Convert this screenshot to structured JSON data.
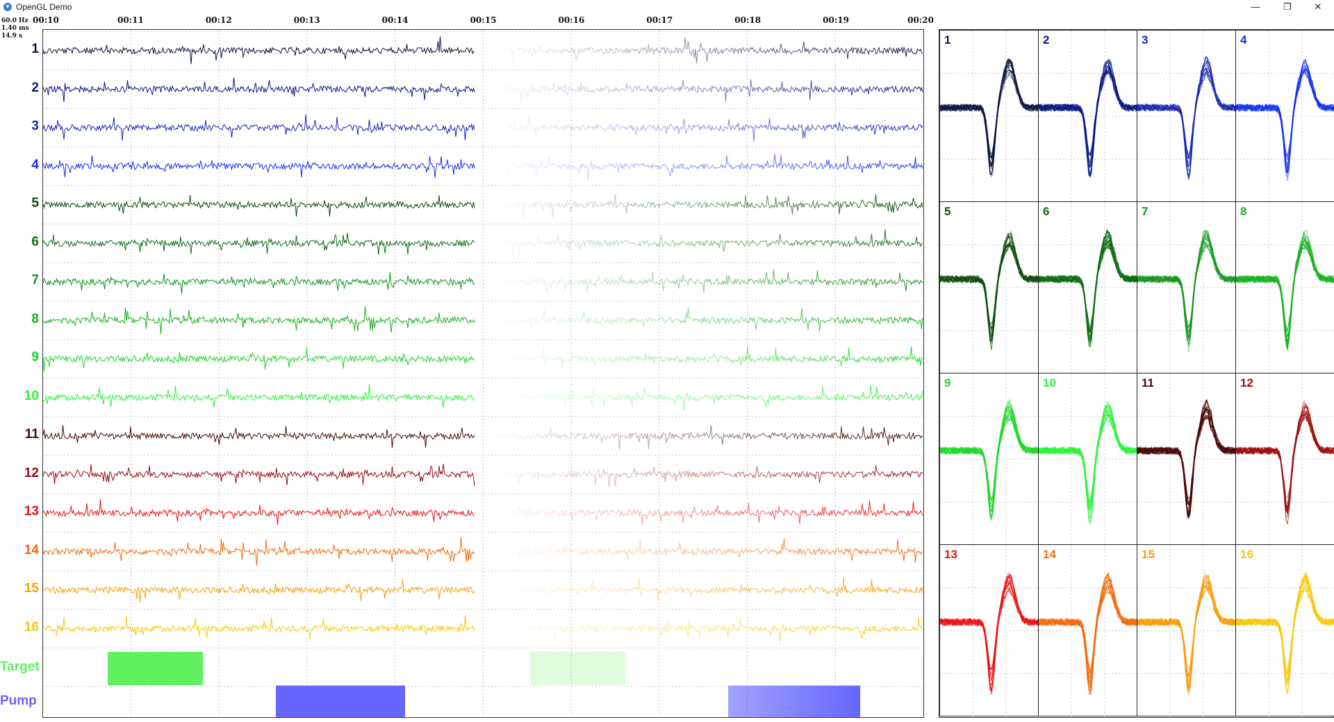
{
  "window": {
    "title": "OpenGL Demo",
    "minimize_label": "—",
    "restore_label": "❐",
    "close_label": "✕"
  },
  "stats": {
    "refresh": "60.0 Hz",
    "frame_time": "1.40 ms",
    "window_length": "14.9 s"
  },
  "time_axis": {
    "ticks": [
      "00:10",
      "00:11",
      "00:12",
      "00:13",
      "00:14",
      "00:15",
      "00:16",
      "00:17",
      "00:18",
      "00:19",
      "00:20"
    ]
  },
  "channels": [
    {
      "label": "1",
      "color": "#0d1440"
    },
    {
      "label": "2",
      "color": "#0a1785"
    },
    {
      "label": "3",
      "color": "#1a28b0"
    },
    {
      "label": "4",
      "color": "#1430ef"
    },
    {
      "label": "5",
      "color": "#0b4a0d"
    },
    {
      "label": "6",
      "color": "#0e6e13"
    },
    {
      "label": "7",
      "color": "#10941a"
    },
    {
      "label": "8",
      "color": "#16b21f"
    },
    {
      "label": "9",
      "color": "#1ed72b"
    },
    {
      "label": "10",
      "color": "#2cf23a"
    },
    {
      "label": "11",
      "color": "#4a0808"
    },
    {
      "label": "12",
      "color": "#9c0c0c"
    },
    {
      "label": "13",
      "color": "#ee1212"
    },
    {
      "label": "14",
      "color": "#f56a0c"
    },
    {
      "label": "15",
      "color": "#f59e0c"
    },
    {
      "label": "16",
      "color": "#f7c80e"
    }
  ],
  "events": {
    "target": {
      "label": "Target",
      "color": "#5ff05f"
    },
    "pump": {
      "label": "Pump",
      "color": "#6666ff"
    }
  },
  "spike_panel": {
    "cells": [
      "1",
      "2",
      "3",
      "4",
      "5",
      "6",
      "7",
      "8",
      "9",
      "10",
      "11",
      "12",
      "13",
      "14",
      "15",
      "16"
    ]
  }
}
